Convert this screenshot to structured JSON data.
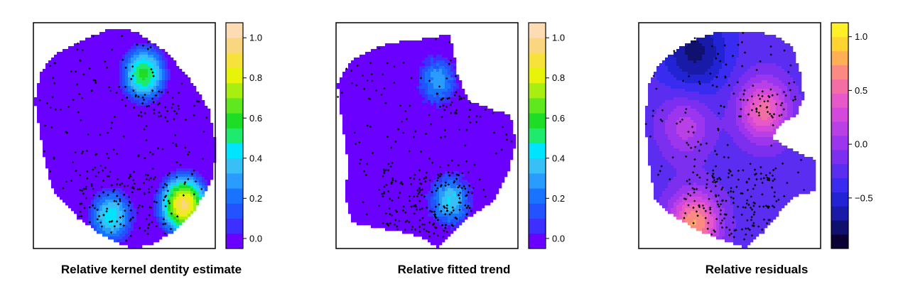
{
  "chart_data": [
    {
      "type": "heatmap",
      "title": "Relative kernel dentity estimate",
      "colorbar": {
        "ticks": [
          0.0,
          0.2,
          0.4,
          0.6,
          0.8,
          1.0
        ],
        "tick_labels": [
          "0.0",
          "0.2",
          "0.4",
          "0.6",
          "0.8",
          "1.0"
        ],
        "range": [
          -0.05,
          1.075
        ],
        "colors": [
          "#6a00ff",
          "#3d2fff",
          "#2452ff",
          "#1a73ff",
          "#2a9cff",
          "#37bff6",
          "#00e5ff",
          "#1eeb6e",
          "#1edd26",
          "#5fe81e",
          "#a8ee10",
          "#e8f30a",
          "#f6e23a",
          "#fbd680",
          "#fddcb4"
        ]
      },
      "hotspots": [
        {
          "x": 0.82,
          "y": 0.2,
          "value": 0.95
        },
        {
          "x": 0.6,
          "y": 0.78,
          "value": 0.58
        },
        {
          "x": 0.42,
          "y": 0.15,
          "value": 0.45
        }
      ],
      "point_density": "two-clusters"
    },
    {
      "type": "heatmap",
      "title": "Relative fitted trend",
      "colorbar": {
        "ticks": [
          0.0,
          0.2,
          0.4,
          0.6,
          0.8,
          1.0
        ],
        "tick_labels": [
          "0.0",
          "0.2",
          "0.4",
          "0.6",
          "0.8",
          "1.0"
        ],
        "range": [
          -0.05,
          1.075
        ],
        "colors": [
          "#6a00ff",
          "#3d2fff",
          "#2452ff",
          "#1a73ff",
          "#2a9cff",
          "#37bff6",
          "#00e5ff",
          "#1eeb6e",
          "#1edd26",
          "#5fe81e",
          "#a8ee10",
          "#e8f30a",
          "#f6e23a",
          "#fbd680",
          "#fddcb4"
        ]
      },
      "hotspots": [
        {
          "x": 0.62,
          "y": 0.22,
          "value": 0.4
        },
        {
          "x": 0.55,
          "y": 0.75,
          "value": 0.3
        }
      ],
      "point_density": "two-clusters"
    },
    {
      "type": "heatmap",
      "title": "Relative residuals",
      "colorbar": {
        "ticks": [
          -0.5,
          0.0,
          0.5,
          1.0
        ],
        "tick_labels": [
          "−0.5",
          "0.0",
          "0.5",
          "1.0"
        ],
        "range": [
          -0.97,
          1.13
        ],
        "colors": [
          "#0a0033",
          "#10106e",
          "#1a1aa8",
          "#2323d6",
          "#3a2bf0",
          "#5a2df0",
          "#7d2ff0",
          "#9b35ee",
          "#b93fe6",
          "#d548dc",
          "#e758c8",
          "#f46ea6",
          "#fb8b82",
          "#ffb055",
          "#ffd330",
          "#fff028"
        ]
      },
      "hotspots": [
        {
          "x": 0.3,
          "y": 0.12,
          "value": 0.75
        },
        {
          "x": 0.68,
          "y": 0.62,
          "value": 0.55
        },
        {
          "x": 0.25,
          "y": 0.55,
          "value": 0.15
        }
      ],
      "lows": [
        {
          "x": 0.3,
          "y": 0.88,
          "value": -0.75
        }
      ],
      "point_density": "two-clusters"
    }
  ]
}
